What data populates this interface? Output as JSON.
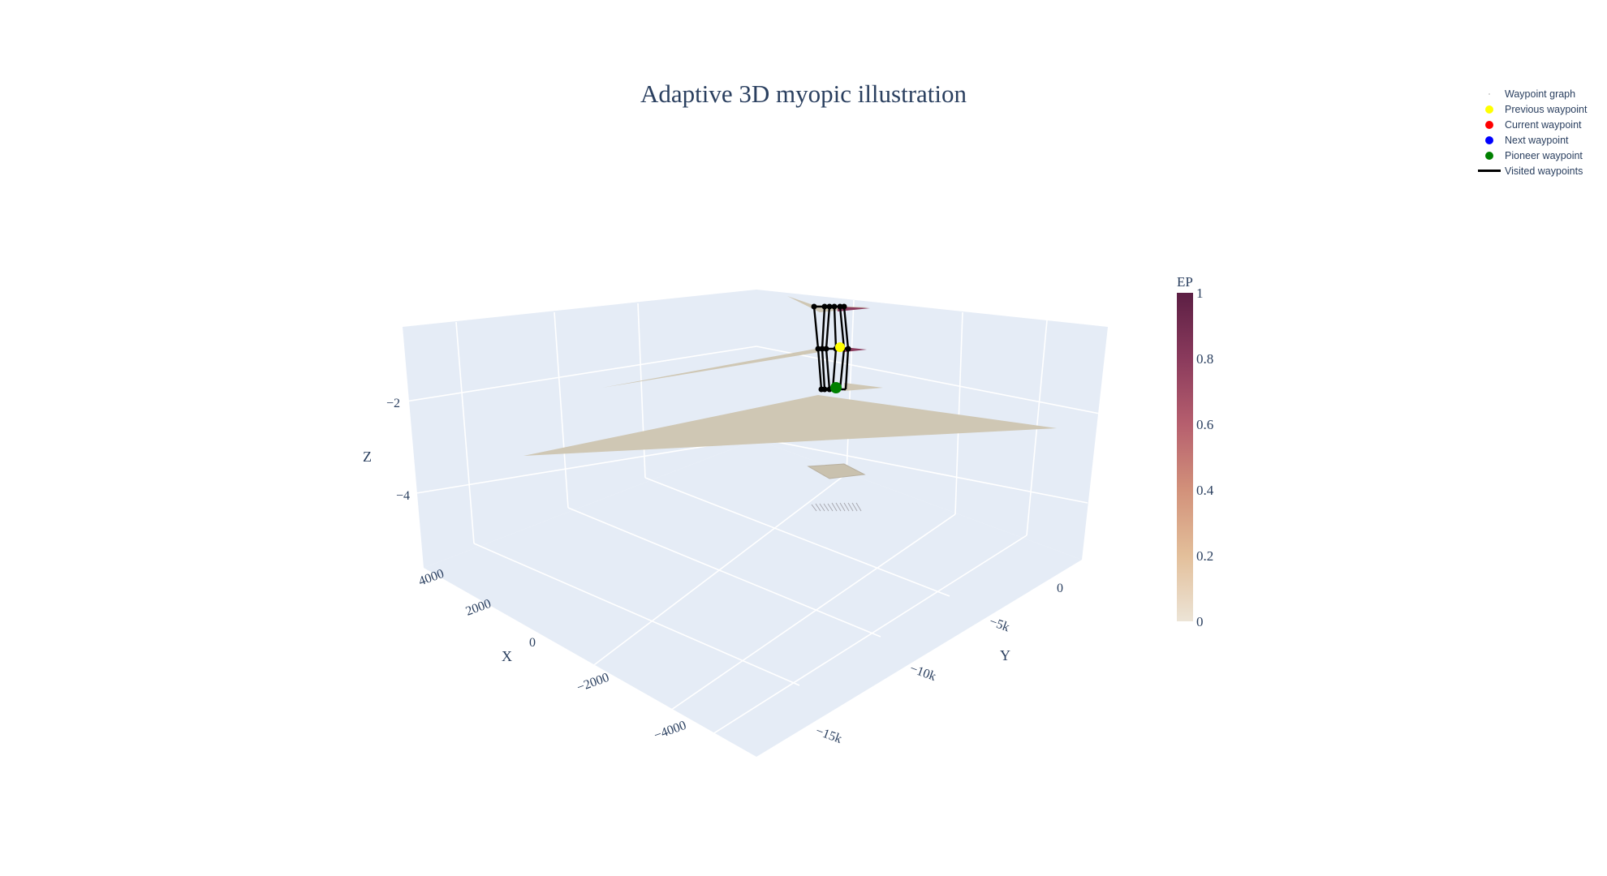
{
  "chart_data": {
    "type": "scatter3d",
    "title": "Adaptive 3D myopic illustration",
    "axes": {
      "x": {
        "title": "X",
        "tick_labels": [
          "4000",
          "2000",
          "0",
          "−2000",
          "−4000"
        ]
      },
      "y": {
        "title": "Y",
        "tick_labels": [
          "0",
          "−5k",
          "−10k",
          "−15k"
        ]
      },
      "z": {
        "title": "Z",
        "tick_labels": [
          "−2",
          "−4"
        ]
      }
    },
    "colorbar": {
      "title": "EP",
      "tick_labels": [
        "1",
        "0.8",
        "0.6",
        "0.4",
        "0.2",
        "0"
      ],
      "colorscale": [
        "#5c1f44",
        "#8a3a5c",
        "#b65f6e",
        "#d2917a",
        "#e3bf9a",
        "#ece4d6"
      ]
    },
    "legend_position": "top-right",
    "legend": [
      {
        "name": "Waypoint graph",
        "symbol": "tiny-dot",
        "color": "#cccccc"
      },
      {
        "name": "Previous waypoint",
        "symbol": "dot",
        "color": "#ffff00"
      },
      {
        "name": "Current waypoint",
        "symbol": "dot",
        "color": "#ff0000"
      },
      {
        "name": "Next waypoint",
        "symbol": "dot",
        "color": "#0000ff"
      },
      {
        "name": "Pioneer waypoint",
        "symbol": "dot",
        "color": "#008000"
      },
      {
        "name": "Visited waypoints",
        "symbol": "line",
        "color": "#000000"
      }
    ]
  }
}
